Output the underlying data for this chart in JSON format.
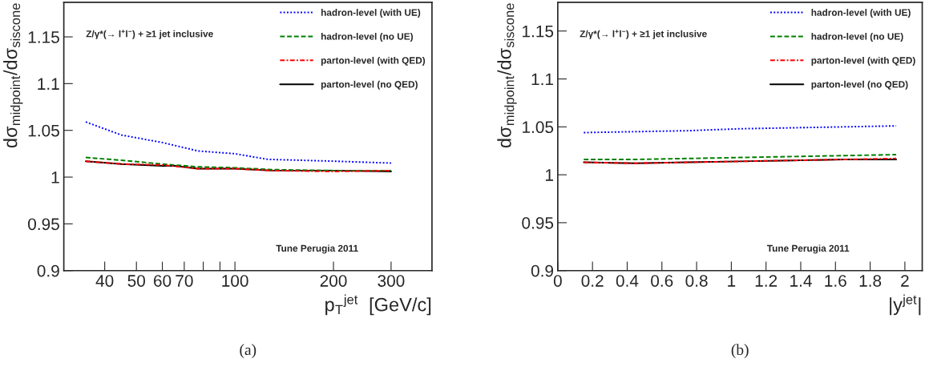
{
  "chart_data": [
    {
      "type": "line",
      "xlabel": "p$_{T}$$^{jet}$  [GeV/c]",
      "ylabel": "dσ$_{midpoint}$/dσ$_{siscone}$",
      "log": "x",
      "xlim": [
        30,
        400
      ],
      "xticks": [
        40,
        50,
        60,
        70,
        {
          "value": 80,
          "label": null
        },
        {
          "value": 90,
          "label": null
        },
        100,
        200,
        300
      ],
      "ylim": [
        0.9,
        1.187
      ],
      "yticks": [
        0.9,
        0.95,
        1,
        1.05,
        1.1,
        1.15
      ],
      "grid": false,
      "legend": "top right",
      "annotations": [
        "Z/γ*(→ l$^{+}$l$^{−}$) + ≥1 jet inclusive",
        "Tune Perugia 2011",
        "(a)"
      ],
      "series": [
        {
          "name": "hadron-level (with UE)",
          "color": "#0000ff",
          "line_style": "dotted",
          "x": [
            35,
            45,
            60,
            77,
            100,
            126,
            202,
            300
          ],
          "values": [
            1.059,
            1.045,
            1.037,
            1.028,
            1.025,
            1.019,
            1.017,
            1.015
          ]
        },
        {
          "name": "hadron-level (no UE)",
          "color": "#007f00",
          "line_style": "dashed",
          "x": [
            35,
            45,
            60,
            77,
            100,
            130,
            200,
            300
          ],
          "values": [
            1.021,
            1.018,
            1.014,
            1.011,
            1.01,
            1.008,
            1.007,
            1.007
          ]
        },
        {
          "name": "parton-level (with QED)",
          "color": "#ff0000",
          "line_style": "dashdot",
          "x": [
            35,
            45,
            60,
            77,
            100,
            130,
            200,
            300
          ],
          "values": [
            1.017,
            1.014,
            1.013,
            1.009,
            1.009,
            1.007,
            1.006,
            1.007
          ]
        },
        {
          "name": "parton-level (no QED)",
          "color": "#000000",
          "line_style": "solid",
          "x": [
            35,
            45,
            60,
            66,
            77,
            100,
            130,
            200,
            300
          ],
          "values": [
            1.017,
            1.014,
            1.012,
            1.012,
            1.009,
            1.009,
            1.007,
            1.007,
            1.006
          ]
        }
      ]
    },
    {
      "type": "line",
      "xlabel": "|y$^{jet}$|",
      "ylabel": "dσ$_{midpoint}$/dσ$_{siscone}$",
      "xlim": [
        0,
        2.1
      ],
      "xticks": [
        0,
        0.2,
        0.4,
        0.6,
        0.8,
        1,
        1.2,
        1.4,
        1.6,
        1.8,
        2
      ],
      "ylim": [
        0.9,
        1.18
      ],
      "yticks": [
        0.9,
        0.95,
        1,
        1.05,
        1.1,
        1.15
      ],
      "grid": false,
      "legend": "top right",
      "annotations": [
        "Z/γ*(→ l$^{+}$l$^{−}$) + ≥1 jet inclusive",
        "Tune Perugia 2011",
        "(b)"
      ],
      "series": [
        {
          "name": "hadron-level (with UE)",
          "color": "#0000ff",
          "line_style": "dotted",
          "x": [
            0.15,
            0.45,
            0.75,
            1.05,
            1.35,
            1.65,
            1.95
          ],
          "values": [
            1.044,
            1.045,
            1.046,
            1.048,
            1.049,
            1.05,
            1.051
          ]
        },
        {
          "name": "hadron-level (no UE)",
          "color": "#007f00",
          "line_style": "dashed",
          "x": [
            0.15,
            0.45,
            0.75,
            1.05,
            1.35,
            1.65,
            1.95
          ],
          "values": [
            1.016,
            1.016,
            1.017,
            1.018,
            1.019,
            1.02,
            1.021
          ]
        },
        {
          "name": "parton-level (with QED)",
          "color": "#ff0000",
          "line_style": "dashdot",
          "x": [
            0.15,
            0.45,
            0.75,
            1.05,
            1.35,
            1.65,
            1.95
          ],
          "values": [
            1.013,
            1.012,
            1.013,
            1.014,
            1.015,
            1.016,
            1.017
          ]
        },
        {
          "name": "parton-level (no QED)",
          "color": "#000000",
          "line_style": "solid",
          "x": [
            0.15,
            0.45,
            0.75,
            1.05,
            1.35,
            1.65,
            1.95
          ],
          "values": [
            1.013,
            1.012,
            1.013,
            1.014,
            1.015,
            1.016,
            1.016
          ]
        }
      ]
    }
  ]
}
